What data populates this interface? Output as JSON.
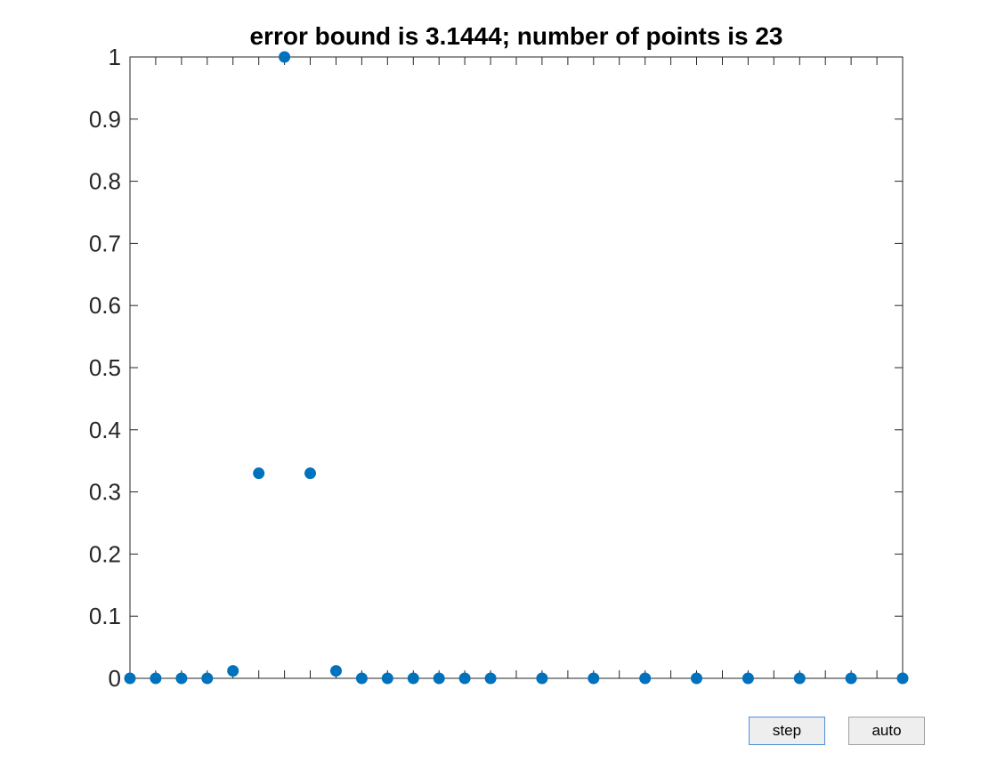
{
  "chart_data": {
    "type": "scatter",
    "title": "error bound is 3.1444; number of points is 23",
    "xlabel": "",
    "ylabel": "",
    "xlim": [
      0,
      1
    ],
    "ylim": [
      0,
      1
    ],
    "ytick_labels": [
      "0",
      "0.1",
      "0.2",
      "0.3",
      "0.4",
      "0.5",
      "0.6",
      "0.7",
      "0.8",
      "0.9",
      "1"
    ],
    "yticks": [
      0,
      0.1,
      0.2,
      0.3,
      0.4,
      0.5,
      0.6,
      0.7,
      0.8,
      0.9,
      1
    ],
    "xticks": [
      0,
      0.0333,
      0.0667,
      0.1,
      0.1333,
      0.1667,
      0.2,
      0.2333,
      0.2667,
      0.3,
      0.3333,
      0.3667,
      0.4,
      0.4333,
      0.4667,
      0.5,
      0.5333,
      0.5667,
      0.6,
      0.6333,
      0.6667,
      0.7,
      0.7333,
      0.7667,
      0.8,
      0.8333,
      0.8667,
      0.9,
      0.9333,
      0.9667,
      1
    ],
    "x_tick_labels_visible": false,
    "grid": false,
    "marker_color": "#0072BD",
    "x": [
      0,
      0.0333,
      0.0667,
      0.1,
      0.1333,
      0.1667,
      0.2,
      0.2333,
      0.2667,
      0.3,
      0.3333,
      0.3667,
      0.4,
      0.4333,
      0.4667,
      0.5333,
      0.6,
      0.6667,
      0.7333,
      0.8,
      0.8667,
      0.9333,
      1
    ],
    "y": [
      0,
      0,
      0,
      0,
      0.012,
      0.33,
      1,
      0.33,
      0.012,
      0,
      0,
      0,
      0,
      0,
      0,
      0,
      0,
      0,
      0,
      0,
      0,
      0,
      0
    ]
  },
  "controls": {
    "step_label": "step",
    "auto_label": "auto"
  },
  "colors": {
    "marker": "#0072BD",
    "axes": "#262626",
    "background": "#ffffff"
  }
}
